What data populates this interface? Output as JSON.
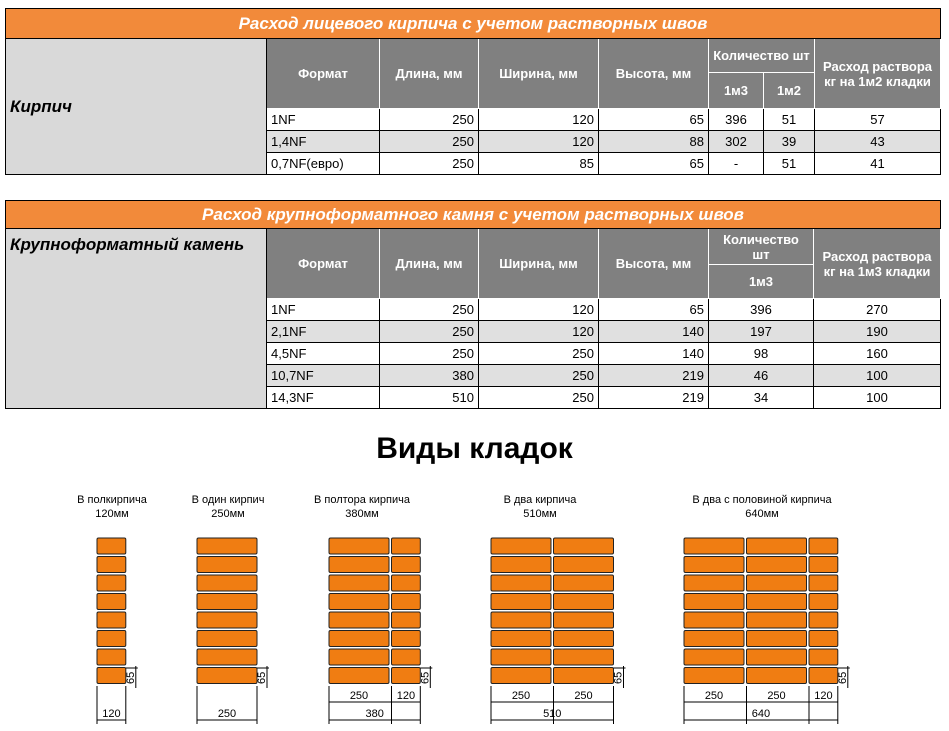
{
  "table1": {
    "title": "Расход лицевого кирпича с учетом растворных швов",
    "label": "Кирпич",
    "headers": {
      "format": "Формат",
      "length": "Длина, мм",
      "width": "Ширина, мм",
      "height": "Высота, мм",
      "qty": "Количество шт",
      "m3": "1м3",
      "m2": "1м2",
      "mortar": "Расход раствора кг на 1м2 кладки"
    },
    "rows": [
      [
        "1NF",
        "250",
        "120",
        "65",
        "396",
        "51",
        "57"
      ],
      [
        "1,4NF",
        "250",
        "120",
        "88",
        "302",
        "39",
        "43"
      ],
      [
        "0,7NF(евро)",
        "250",
        "85",
        "65",
        "-",
        "51",
        "41"
      ]
    ]
  },
  "table2": {
    "title": "Расход крупноформатного камня с учетом растворных швов",
    "label": "Крупноформатный камень",
    "headers": {
      "format": "Формат",
      "length": "Длина, мм",
      "width": "Ширина, мм",
      "height": "Высота, мм",
      "qty": "Количество шт",
      "m3": "1м3",
      "mortar": "Расход раствора кг на 1м3 кладки"
    },
    "rows": [
      [
        "1NF",
        "250",
        "120",
        "65",
        "396",
        "270"
      ],
      [
        "2,1NF",
        "250",
        "120",
        "140",
        "197",
        "190"
      ],
      [
        "4,5NF",
        "250",
        "250",
        "140",
        "98",
        "160"
      ],
      [
        "10,7NF",
        "380",
        "250",
        "219",
        "46",
        "100"
      ],
      [
        "14,3NF",
        "510",
        "250",
        "219",
        "34",
        "100"
      ]
    ]
  },
  "section_title": "Виды кладок",
  "brick_color": "#f07d12",
  "walls": [
    {
      "name": "В полкирпича",
      "thickness": "120мм",
      "parts": [
        "120"
      ],
      "total": "120",
      "height": "65"
    },
    {
      "name": "В один кирпич",
      "thickness": "250мм",
      "parts": [
        "250"
      ],
      "total": "250",
      "height": "65"
    },
    {
      "name": "В полтора кирпича",
      "thickness": "380мм",
      "parts": [
        "250",
        "120"
      ],
      "total": "380",
      "height": "65"
    },
    {
      "name": "В два кирпича",
      "thickness": "510мм",
      "parts": [
        "250",
        "250"
      ],
      "total": "510",
      "height": "65"
    },
    {
      "name": "В два с половиной кирпича",
      "thickness": "640мм",
      "parts": [
        "250",
        "250",
        "120"
      ],
      "total": "640",
      "height": "65"
    }
  ]
}
